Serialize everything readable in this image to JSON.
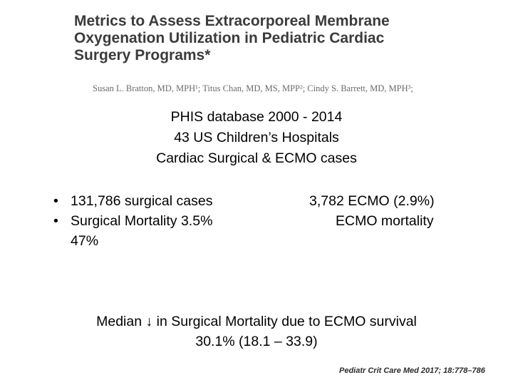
{
  "paper": {
    "title_lines": [
      "Metrics to Assess Extracorporeal Membrane",
      "Oxygenation Utilization in Pediatric Cardiac",
      "Surgery Programs*"
    ],
    "authors": "Susan L. Bratton, MD, MPH¹; Titus Chan, MD, MS, MPP²; Cindy S. Barrett, MD, MPH³;"
  },
  "study": {
    "lines": [
      "PHIS database 2000 - 2014",
      "43 US Children’s Hospitals",
      "Cardiac Surgical & ECMO cases"
    ]
  },
  "bullets": [
    "131,786 surgical cases",
    "Surgical Mortality 3.5%"
  ],
  "bullet_continuation": "47%",
  "ecmo": {
    "line1": "3,782 ECMO (2.9%)",
    "line2": "ECMO mortality"
  },
  "finding": {
    "line1": "Median ↓ in Surgical Mortality due to ECMO survival",
    "line2": "30.1% (18.1 – 33.9)"
  },
  "citation": "Pediatr Crit Care Med 2017; 18:778–786"
}
